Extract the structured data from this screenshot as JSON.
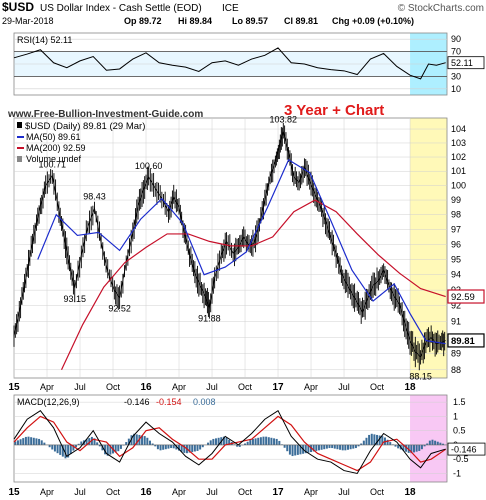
{
  "header": {
    "symbol": "$USD",
    "name": "US Dollar Index - Cash Settle (EOD)",
    "exchange": "ICE",
    "date": "29-Mar-2018",
    "ohlc_open": "Op 89.72",
    "ohlc_high": "Hi 89.84",
    "ohlc_low": "Lo 89.57",
    "ohlc_close": "Cl 89.81",
    "change": "Chg +0.09 (+0.10%)",
    "brand": "© StockCharts.com",
    "website": "www.Free-Bullion-Investment-Guide.com",
    "annotation": "3 Year + Chart"
  },
  "legend": {
    "price": "$USD (Daily) 89.81 (29 Mar)",
    "ma50": "MA(50) 89.61",
    "ma200": "MA(200) 92.59",
    "volume": "Volume undef"
  },
  "colors": {
    "price": "#000000",
    "ma50": "#1c2ccd",
    "ma200": "#c6102a",
    "rsi": "#000000",
    "rsi_band_fill": "#e8f7ff",
    "highlight_yellow": "#fff9b8",
    "highlight_cyan": "#aeefff",
    "highlight_pink": "#f8c8f4",
    "macd_line": "#000000",
    "macd_signal": "#d11212",
    "macd_hist": "#3b6d99",
    "annotation": "#e01b1b",
    "grid": "#d0d0d0"
  },
  "chart_data": {
    "type": "line",
    "x_axis_labels": [
      "15",
      "Apr",
      "Jul",
      "Oct",
      "16",
      "Apr",
      "Jul",
      "Oct",
      "17",
      "Apr",
      "Jul",
      "Oct",
      "18"
    ],
    "price_panel": {
      "y_ticks": [
        88,
        89,
        90,
        91,
        92,
        93,
        94,
        95,
        96,
        97,
        98,
        99,
        100,
        101,
        102,
        103,
        104
      ],
      "ylim": [
        87.5,
        104.8
      ],
      "scale": "log",
      "price_series": [
        [
          0,
          90.1
        ],
        [
          0.2,
          91.6
        ],
        [
          0.4,
          93.3
        ],
        [
          0.6,
          95.2
        ],
        [
          0.8,
          97.0
        ],
        [
          1.0,
          98.6
        ],
        [
          1.2,
          100.0
        ],
        [
          1.45,
          100.71
        ],
        [
          1.7,
          98.3
        ],
        [
          1.9,
          96.5
        ],
        [
          2.1,
          94.6
        ],
        [
          2.3,
          93.15
        ],
        [
          2.55,
          95.3
        ],
        [
          2.8,
          97.2
        ],
        [
          3.05,
          98.43
        ],
        [
          3.3,
          96.1
        ],
        [
          3.55,
          94.2
        ],
        [
          3.8,
          93.0
        ],
        [
          4.0,
          92.52
        ],
        [
          4.25,
          94.8
        ],
        [
          4.5,
          96.8
        ],
        [
          4.7,
          98.6
        ],
        [
          4.9,
          99.7
        ],
        [
          5.1,
          100.6
        ],
        [
          5.35,
          99.8
        ],
        [
          5.6,
          99.1
        ],
        [
          5.85,
          98.2
        ],
        [
          6.05,
          99.2
        ],
        [
          6.25,
          98.5
        ],
        [
          6.45,
          96.8
        ],
        [
          6.65,
          95.3
        ],
        [
          6.85,
          94.1
        ],
        [
          7.05,
          93.3
        ],
        [
          7.25,
          92.6
        ],
        [
          7.4,
          91.88
        ],
        [
          7.6,
          93.8
        ],
        [
          7.85,
          95.3
        ],
        [
          8.05,
          96.2
        ],
        [
          8.3,
          95.4
        ],
        [
          8.5,
          95.8
        ],
        [
          8.7,
          96.5
        ],
        [
          8.9,
          95.9
        ],
        [
          9.1,
          96.1
        ],
        [
          9.3,
          97.4
        ],
        [
          9.5,
          99.0
        ],
        [
          9.7,
          100.6
        ],
        [
          9.9,
          101.7
        ],
        [
          10.05,
          102.7
        ],
        [
          10.2,
          103.82
        ],
        [
          10.4,
          102.3
        ],
        [
          10.6,
          100.6
        ],
        [
          10.8,
          100.2
        ],
        [
          11.0,
          101.3
        ],
        [
          11.2,
          100.3
        ],
        [
          11.4,
          99.4
        ],
        [
          11.6,
          98.6
        ],
        [
          11.8,
          97.6
        ],
        [
          12.0,
          96.4
        ],
        [
          12.2,
          95.4
        ],
        [
          12.4,
          94.1
        ],
        [
          12.6,
          93.4
        ],
        [
          12.8,
          92.8
        ],
        [
          13.0,
          92.2
        ],
        [
          13.2,
          91.6
        ],
        [
          13.4,
          92.5
        ],
        [
          13.6,
          93.3
        ],
        [
          13.8,
          93.6
        ],
        [
          14.0,
          94.3
        ],
        [
          14.2,
          93.3
        ],
        [
          14.4,
          92.6
        ],
        [
          14.6,
          92.1
        ],
        [
          14.8,
          90.9
        ],
        [
          15.0,
          89.8
        ],
        [
          15.2,
          89.1
        ],
        [
          15.4,
          88.8
        ],
        [
          15.6,
          89.7
        ],
        [
          15.8,
          90.0
        ],
        [
          16.0,
          89.6
        ],
        [
          16.2,
          89.7
        ],
        [
          16.35,
          89.81
        ]
      ],
      "ma50_series": [
        [
          0.9,
          95.0
        ],
        [
          1.6,
          98.0
        ],
        [
          2.4,
          96.6
        ],
        [
          3.2,
          96.8
        ],
        [
          4.0,
          95.6
        ],
        [
          4.8,
          97.7
        ],
        [
          5.6,
          99.1
        ],
        [
          6.4,
          97.4
        ],
        [
          7.2,
          94.0
        ],
        [
          8.0,
          94.5
        ],
        [
          8.8,
          95.5
        ],
        [
          9.6,
          98.5
        ],
        [
          10.4,
          101.8
        ],
        [
          11.2,
          100.9
        ],
        [
          12.0,
          97.6
        ],
        [
          12.8,
          94.3
        ],
        [
          13.6,
          92.3
        ],
        [
          14.4,
          93.4
        ],
        [
          15.0,
          91.5
        ],
        [
          15.6,
          89.8
        ],
        [
          16.35,
          89.61
        ]
      ],
      "ma200_series": [
        [
          1.8,
          88.0
        ],
        [
          2.6,
          90.8
        ],
        [
          3.4,
          93.2
        ],
        [
          4.2,
          94.8
        ],
        [
          5.0,
          95.8
        ],
        [
          5.8,
          96.7
        ],
        [
          6.6,
          96.7
        ],
        [
          7.4,
          96.2
        ],
        [
          8.2,
          95.9
        ],
        [
          9.0,
          95.9
        ],
        [
          9.8,
          96.5
        ],
        [
          10.6,
          98.2
        ],
        [
          11.4,
          99.0
        ],
        [
          12.2,
          98.2
        ],
        [
          13.0,
          96.7
        ],
        [
          13.8,
          95.3
        ],
        [
          14.6,
          94.1
        ],
        [
          15.4,
          93.1
        ],
        [
          16.35,
          92.59
        ]
      ],
      "price_labels": [
        {
          "text": "100.71",
          "x": 1.45,
          "y": 100.71
        },
        {
          "text": "93.15",
          "x": 2.3,
          "y": 93.15
        },
        {
          "text": "98.43",
          "x": 3.05,
          "y": 98.43
        },
        {
          "text": "92.52",
          "x": 4.0,
          "y": 92.52
        },
        {
          "text": "100.60",
          "x": 5.1,
          "y": 100.6
        },
        {
          "text": "91.88",
          "x": 7.4,
          "y": 91.88
        },
        {
          "text": "103.82",
          "x": 10.2,
          "y": 103.82
        },
        {
          "text": "88.15",
          "x": 15.4,
          "y": 88.15
        }
      ],
      "right_value_tags": [
        {
          "text": "92.59",
          "value": 92.59,
          "kind": "ma200"
        },
        {
          "text": "89.81",
          "value": 89.81,
          "kind": "price"
        }
      ]
    },
    "rsi_panel": {
      "label": "RSI(14) 52.11",
      "y_ticks": [
        10,
        30,
        50,
        70,
        90
      ],
      "ylim": [
        0,
        100
      ],
      "bands": [
        30,
        70
      ],
      "last_value": 52.11,
      "last_value_text": "52.11",
      "series": [
        [
          0,
          60
        ],
        [
          0.5,
          66
        ],
        [
          1.0,
          73
        ],
        [
          1.5,
          52
        ],
        [
          2.0,
          44
        ],
        [
          2.5,
          55
        ],
        [
          3.0,
          62
        ],
        [
          3.5,
          40
        ],
        [
          4.0,
          42
        ],
        [
          4.5,
          58
        ],
        [
          5.0,
          68
        ],
        [
          5.5,
          52
        ],
        [
          6.0,
          48
        ],
        [
          6.5,
          45
        ],
        [
          7.0,
          38
        ],
        [
          7.5,
          52
        ],
        [
          8.0,
          55
        ],
        [
          8.5,
          48
        ],
        [
          9.0,
          58
        ],
        [
          9.5,
          64
        ],
        [
          10.0,
          76
        ],
        [
          10.5,
          52
        ],
        [
          11.0,
          50
        ],
        [
          11.5,
          44
        ],
        [
          12.0,
          41
        ],
        [
          12.5,
          39
        ],
        [
          13.0,
          33
        ],
        [
          13.5,
          58
        ],
        [
          14.0,
          67
        ],
        [
          14.5,
          46
        ],
        [
          15.0,
          32
        ],
        [
          15.4,
          26
        ],
        [
          15.7,
          50
        ],
        [
          16.0,
          48
        ],
        [
          16.35,
          52.11
        ]
      ]
    },
    "macd_panel": {
      "label_prefix": "MACD(12,26,9)",
      "macd_text": "-0.146",
      "signal_text": "-0.154",
      "hist_text": "0.008",
      "last_value_text": "-0.146",
      "y_ticks": [
        -1.0,
        -0.5,
        0.0,
        0.5,
        1.0,
        1.5
      ],
      "ylim": [
        -1.3,
        1.75
      ],
      "macd_series": [
        [
          0,
          0.2
        ],
        [
          0.5,
          0.9
        ],
        [
          1.0,
          1.2
        ],
        [
          1.5,
          0.6
        ],
        [
          2.0,
          -0.4
        ],
        [
          2.5,
          -0.1
        ],
        [
          3.0,
          0.5
        ],
        [
          3.5,
          -0.3
        ],
        [
          4.0,
          -0.6
        ],
        [
          4.5,
          0.3
        ],
        [
          5.0,
          0.8
        ],
        [
          5.5,
          0.4
        ],
        [
          6.0,
          0.1
        ],
        [
          6.5,
          -0.4
        ],
        [
          7.0,
          -0.7
        ],
        [
          7.5,
          -0.3
        ],
        [
          8.0,
          0.3
        ],
        [
          8.5,
          0.0
        ],
        [
          9.0,
          0.4
        ],
        [
          9.5,
          0.9
        ],
        [
          10.0,
          1.2
        ],
        [
          10.5,
          0.3
        ],
        [
          11.0,
          -0.2
        ],
        [
          11.5,
          -0.5
        ],
        [
          12.0,
          -0.6
        ],
        [
          12.5,
          -0.9
        ],
        [
          13.0,
          -1.0
        ],
        [
          13.5,
          -0.2
        ],
        [
          14.0,
          0.4
        ],
        [
          14.5,
          0.1
        ],
        [
          15.0,
          -0.5
        ],
        [
          15.4,
          -0.8
        ],
        [
          15.8,
          -0.3
        ],
        [
          16.35,
          -0.146
        ]
      ],
      "signal_series": [
        [
          0,
          0.1
        ],
        [
          0.5,
          0.6
        ],
        [
          1.0,
          1.0
        ],
        [
          1.5,
          0.8
        ],
        [
          2.0,
          0.1
        ],
        [
          2.5,
          -0.2
        ],
        [
          3.0,
          0.2
        ],
        [
          3.5,
          0.1
        ],
        [
          4.0,
          -0.4
        ],
        [
          4.5,
          -0.1
        ],
        [
          5.0,
          0.5
        ],
        [
          5.5,
          0.6
        ],
        [
          6.0,
          0.2
        ],
        [
          6.5,
          -0.1
        ],
        [
          7.0,
          -0.5
        ],
        [
          7.5,
          -0.5
        ],
        [
          8.0,
          0.0
        ],
        [
          8.5,
          0.1
        ],
        [
          9.0,
          0.2
        ],
        [
          9.5,
          0.6
        ],
        [
          10.0,
          1.0
        ],
        [
          10.5,
          0.7
        ],
        [
          11.0,
          0.1
        ],
        [
          11.5,
          -0.3
        ],
        [
          12.0,
          -0.5
        ],
        [
          12.5,
          -0.7
        ],
        [
          13.0,
          -0.9
        ],
        [
          13.5,
          -0.6
        ],
        [
          14.0,
          0.1
        ],
        [
          14.5,
          0.2
        ],
        [
          15.0,
          -0.2
        ],
        [
          15.4,
          -0.6
        ],
        [
          15.8,
          -0.5
        ],
        [
          16.35,
          -0.154
        ]
      ]
    }
  }
}
